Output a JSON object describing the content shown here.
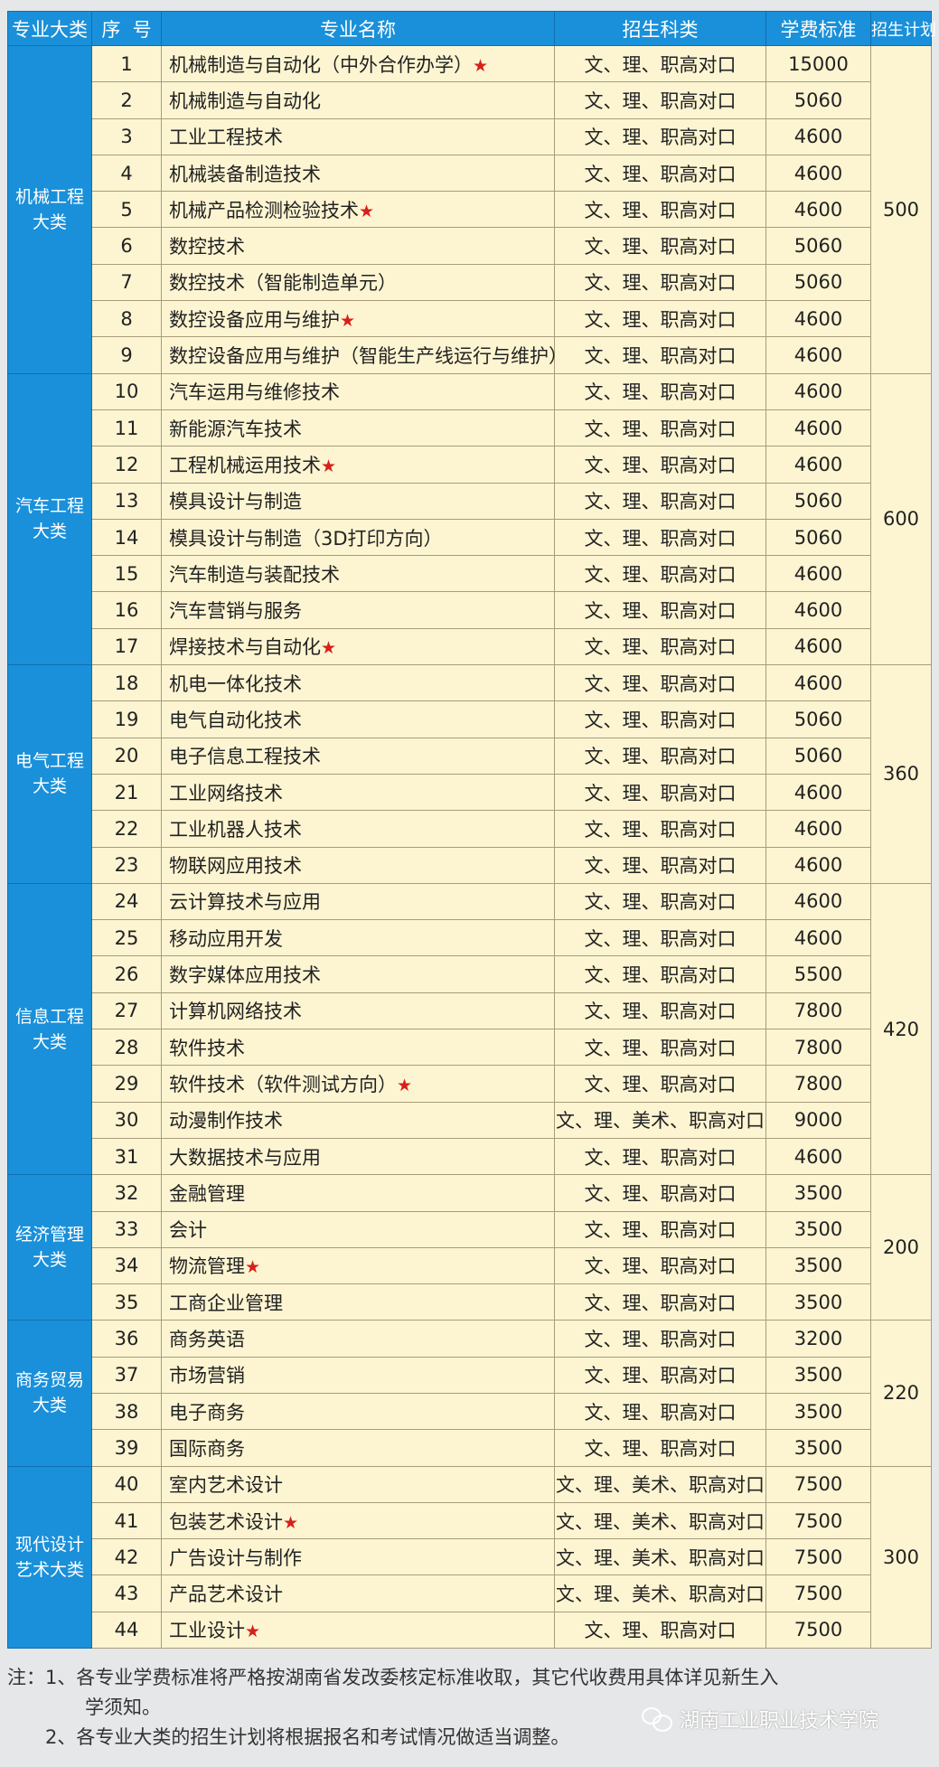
{
  "header": {
    "category": "专业大类",
    "seq": "序  号",
    "name": "专业名称",
    "subjects": "招生科类",
    "fee": "学费标准",
    "plan": "招生计划"
  },
  "star_symbol": "★",
  "colors": {
    "header_bg": "#1a90da",
    "cell_bg": "#fdf5d2",
    "star": "#d8201b"
  },
  "groups": [
    {
      "category": "机械工程大类",
      "plan": "500",
      "rows": [
        {
          "seq": "1",
          "name": "机械制造与自动化（中外合作办学）",
          "star": true,
          "subjects": "文、理、职高对口",
          "fee": "15000"
        },
        {
          "seq": "2",
          "name": "机械制造与自动化",
          "star": false,
          "subjects": "文、理、职高对口",
          "fee": "5060"
        },
        {
          "seq": "3",
          "name": "工业工程技术",
          "star": false,
          "subjects": "文、理、职高对口",
          "fee": "4600"
        },
        {
          "seq": "4",
          "name": "机械装备制造技术",
          "star": false,
          "subjects": "文、理、职高对口",
          "fee": "4600"
        },
        {
          "seq": "5",
          "name": "机械产品检测检验技术",
          "star": true,
          "subjects": "文、理、职高对口",
          "fee": "4600"
        },
        {
          "seq": "6",
          "name": "数控技术",
          "star": false,
          "subjects": "文、理、职高对口",
          "fee": "5060"
        },
        {
          "seq": "7",
          "name": "数控技术（智能制造单元）",
          "star": false,
          "subjects": "文、理、职高对口",
          "fee": "5060"
        },
        {
          "seq": "8",
          "name": "数控设备应用与维护",
          "star": true,
          "subjects": "文、理、职高对口",
          "fee": "4600"
        },
        {
          "seq": "9",
          "name": "数控设备应用与维护（智能生产线运行与维护）",
          "star": false,
          "subjects": "文、理、职高对口",
          "fee": "4600"
        }
      ]
    },
    {
      "category": "汽车工程大类",
      "plan": "600",
      "rows": [
        {
          "seq": "10",
          "name": "汽车运用与维修技术",
          "star": false,
          "subjects": "文、理、职高对口",
          "fee": "4600"
        },
        {
          "seq": "11",
          "name": "新能源汽车技术",
          "star": false,
          "subjects": "文、理、职高对口",
          "fee": "4600"
        },
        {
          "seq": "12",
          "name": "工程机械运用技术",
          "star": true,
          "subjects": "文、理、职高对口",
          "fee": "4600"
        },
        {
          "seq": "13",
          "name": "模具设计与制造",
          "star": false,
          "subjects": "文、理、职高对口",
          "fee": "5060"
        },
        {
          "seq": "14",
          "name": "模具设计与制造（3D打印方向）",
          "star": false,
          "subjects": "文、理、职高对口",
          "fee": "5060"
        },
        {
          "seq": "15",
          "name": "汽车制造与装配技术",
          "star": false,
          "subjects": "文、理、职高对口",
          "fee": "4600"
        },
        {
          "seq": "16",
          "name": "汽车营销与服务",
          "star": false,
          "subjects": "文、理、职高对口",
          "fee": "4600"
        },
        {
          "seq": "17",
          "name": "焊接技术与自动化",
          "star": true,
          "subjects": "文、理、职高对口",
          "fee": "4600"
        }
      ]
    },
    {
      "category": "电气工程大类",
      "plan": "360",
      "rows": [
        {
          "seq": "18",
          "name": "机电一体化技术",
          "star": false,
          "subjects": "文、理、职高对口",
          "fee": "4600"
        },
        {
          "seq": "19",
          "name": "电气自动化技术",
          "star": false,
          "subjects": "文、理、职高对口",
          "fee": "5060"
        },
        {
          "seq": "20",
          "name": "电子信息工程技术",
          "star": false,
          "subjects": "文、理、职高对口",
          "fee": "5060"
        },
        {
          "seq": "21",
          "name": "工业网络技术",
          "star": false,
          "subjects": "文、理、职高对口",
          "fee": "4600"
        },
        {
          "seq": "22",
          "name": "工业机器人技术",
          "star": false,
          "subjects": "文、理、职高对口",
          "fee": "4600"
        },
        {
          "seq": "23",
          "name": "物联网应用技术",
          "star": false,
          "subjects": "文、理、职高对口",
          "fee": "4600"
        }
      ]
    },
    {
      "category": "信息工程大类",
      "plan": "420",
      "rows": [
        {
          "seq": "24",
          "name": "云计算技术与应用",
          "star": false,
          "subjects": "文、理、职高对口",
          "fee": "4600"
        },
        {
          "seq": "25",
          "name": "移动应用开发",
          "star": false,
          "subjects": "文、理、职高对口",
          "fee": "4600"
        },
        {
          "seq": "26",
          "name": "数字媒体应用技术",
          "star": false,
          "subjects": "文、理、职高对口",
          "fee": "5500"
        },
        {
          "seq": "27",
          "name": "计算机网络技术",
          "star": false,
          "subjects": "文、理、职高对口",
          "fee": "7800"
        },
        {
          "seq": "28",
          "name": "软件技术",
          "star": false,
          "subjects": "文、理、职高对口",
          "fee": "7800"
        },
        {
          "seq": "29",
          "name": "软件技术（软件测试方向）",
          "star": true,
          "subjects": "文、理、职高对口",
          "fee": "7800"
        },
        {
          "seq": "30",
          "name": "动漫制作技术",
          "star": false,
          "subjects": "文、理、美术、职高对口",
          "fee": "9000"
        },
        {
          "seq": "31",
          "name": "大数据技术与应用",
          "star": false,
          "subjects": "文、理、职高对口",
          "fee": "4600"
        }
      ]
    },
    {
      "category": "经济管理大类",
      "plan": "200",
      "rows": [
        {
          "seq": "32",
          "name": "金融管理",
          "star": false,
          "subjects": "文、理、职高对口",
          "fee": "3500"
        },
        {
          "seq": "33",
          "name": "会计",
          "star": false,
          "subjects": "文、理、职高对口",
          "fee": "3500"
        },
        {
          "seq": "34",
          "name": "物流管理",
          "star": true,
          "subjects": "文、理、职高对口",
          "fee": "3500"
        },
        {
          "seq": "35",
          "name": "工商企业管理",
          "star": false,
          "subjects": "文、理、职高对口",
          "fee": "3500"
        }
      ]
    },
    {
      "category": "商务贸易大类",
      "plan": "220",
      "rows": [
        {
          "seq": "36",
          "name": "商务英语",
          "star": false,
          "subjects": "文、理、职高对口",
          "fee": "3200"
        },
        {
          "seq": "37",
          "name": "市场营销",
          "star": false,
          "subjects": "文、理、职高对口",
          "fee": "3500"
        },
        {
          "seq": "38",
          "name": "电子商务",
          "star": false,
          "subjects": "文、理、职高对口",
          "fee": "3500"
        },
        {
          "seq": "39",
          "name": "国际商务",
          "star": false,
          "subjects": "文、理、职高对口",
          "fee": "3500"
        }
      ]
    },
    {
      "category": "现代设计艺术大类",
      "plan": "300",
      "rows": [
        {
          "seq": "40",
          "name": "室内艺术设计",
          "star": false,
          "subjects": "文、理、美术、职高对口",
          "fee": "7500"
        },
        {
          "seq": "41",
          "name": "包装艺术设计",
          "star": true,
          "subjects": "文、理、美术、职高对口",
          "fee": "7500"
        },
        {
          "seq": "42",
          "name": "广告设计与制作",
          "star": false,
          "subjects": "文、理、美术、职高对口",
          "fee": "7500"
        },
        {
          "seq": "43",
          "name": "产品艺术设计",
          "star": false,
          "subjects": "文、理、美术、职高对口",
          "fee": "7500"
        },
        {
          "seq": "44",
          "name": "工业设计",
          "star": true,
          "subjects": "文、理、职高对口",
          "fee": "7500"
        }
      ]
    }
  ],
  "notes": {
    "line1": "注：1、各专业学费标准将严格按湖南省发改委核定标准收取，其它代收费用具体详见新生入",
    "line1_cont": "学须知。",
    "line2": "2、各专业大类的招生计划将根据报名和考试情况做适当调整。"
  },
  "watermark": "湖南工业职业技术学院"
}
